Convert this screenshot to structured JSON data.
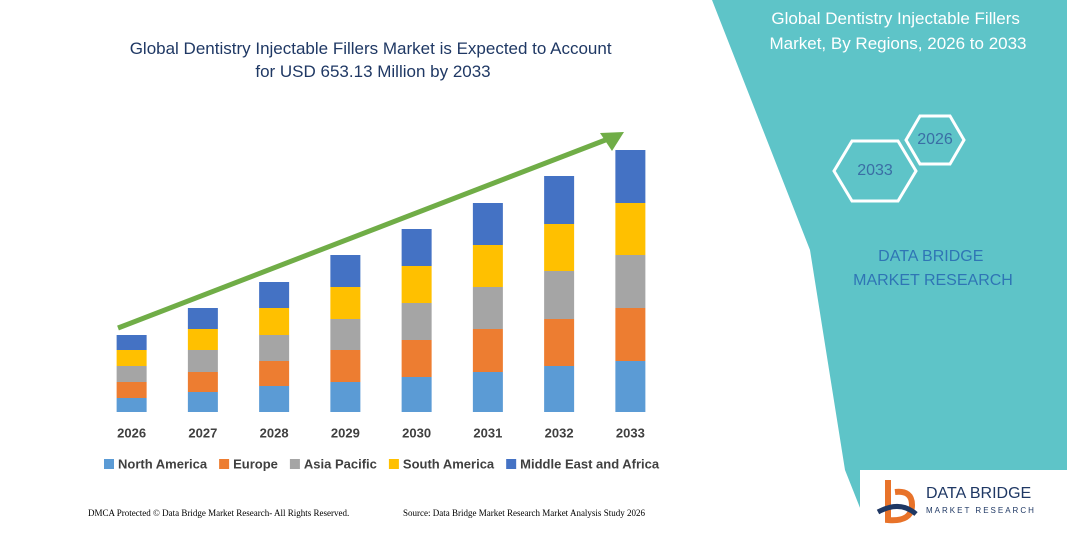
{
  "chart_data": {
    "type": "stacked-bar",
    "title": "Global Dentistry Injectable Fillers Market is Expected to Account for USD 653.13 Million by 2033",
    "categories": [
      "2026",
      "2027",
      "2028",
      "2029",
      "2030",
      "2031",
      "2032",
      "2033"
    ],
    "series": [
      {
        "name": "North America",
        "color": "#5b9bd5",
        "values": [
          14,
          20,
          26,
          30,
          35,
          40,
          46,
          51
        ]
      },
      {
        "name": "Europe",
        "color": "#ed7d31",
        "values": [
          16,
          20,
          25,
          32,
          37,
          43,
          47,
          53
        ]
      },
      {
        "name": "Asia Pacific",
        "color": "#a5a5a5",
        "values": [
          16,
          22,
          26,
          31,
          37,
          42,
          48,
          53
        ]
      },
      {
        "name": "South America",
        "color": "#ffc000",
        "values": [
          16,
          21,
          27,
          32,
          37,
          42,
          47,
          52
        ]
      },
      {
        "name": "Middle East and Africa",
        "color": "#4472c4",
        "values": [
          15,
          21,
          26,
          32,
          37,
          42,
          48,
          53
        ]
      }
    ],
    "ylim": [
      0,
      300
    ]
  },
  "panel": {
    "title": "Global Dentistry Injectable Fillers Market, By Regions, 2026 to 2033",
    "hex_start": "2026",
    "hex_end": "2033",
    "brand": "DATA BRIDGE MARKET RESEARCH"
  },
  "logo": {
    "name": "DATA BRIDGE",
    "tagline": "MARKET RESEARCH"
  },
  "footer": {
    "left": "DMCA Protected © Data Bridge Market Research- All Rights Reserved.",
    "right": "Source: Data Bridge Market Research Market Analysis Study 2026"
  }
}
